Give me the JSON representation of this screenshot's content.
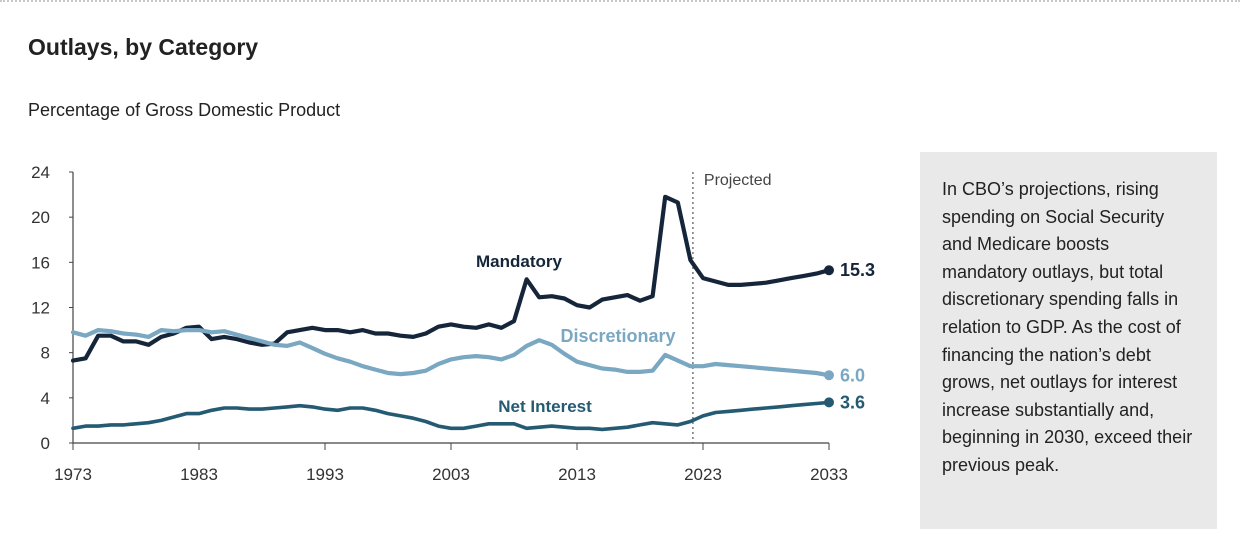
{
  "header": {
    "title": "Outlays, by Category",
    "subtitle": "Percentage of Gross Domestic Product"
  },
  "note": {
    "text": "In CBO’s projections, rising spending on Social Security and Medicare boosts mandatory outlays, but total discretionary spending falls in relation to GDP. As the cost of financing the nation’s debt grows, net outlays for interest increase substantially and, beginning in 2030, exceed their previous peak."
  },
  "colors": {
    "mandatory": "#16263a",
    "discretionary": "#7aa7c2",
    "net_interest": "#245b73",
    "axis": "#444444",
    "box": "#e9e9e9"
  },
  "chart_data": {
    "type": "line",
    "title": "Outlays, by Category",
    "subtitle": "Percentage of Gross Domestic Product",
    "xlabel": "",
    "ylabel": "",
    "xlim": [
      1973,
      2033
    ],
    "ylim": [
      0,
      24
    ],
    "xticks": [
      1973,
      1983,
      1993,
      2003,
      2013,
      2023,
      2033
    ],
    "yticks": [
      0,
      4,
      8,
      12,
      16,
      20,
      24
    ],
    "grid": false,
    "projection_label": "Projected",
    "projection_start": 2022.2,
    "series": [
      {
        "name": "Mandatory",
        "end_label": "15.3",
        "color": "#16263a",
        "x": [
          1973,
          1974,
          1975,
          1976,
          1977,
          1978,
          1979,
          1980,
          1981,
          1982,
          1983,
          1984,
          1985,
          1986,
          1987,
          1988,
          1989,
          1990,
          1991,
          1992,
          1993,
          1994,
          1995,
          1996,
          1997,
          1998,
          1999,
          2000,
          2001,
          2002,
          2003,
          2004,
          2005,
          2006,
          2007,
          2008,
          2009,
          2010,
          2011,
          2012,
          2013,
          2014,
          2015,
          2016,
          2017,
          2018,
          2019,
          2020,
          2021,
          2022,
          2023,
          2024,
          2025,
          2026,
          2027,
          2028,
          2029,
          2030,
          2031,
          2032,
          2033
        ],
        "values": [
          7.3,
          7.5,
          9.5,
          9.5,
          9.0,
          9.0,
          8.7,
          9.4,
          9.7,
          10.2,
          10.3,
          9.2,
          9.4,
          9.2,
          8.9,
          8.7,
          8.8,
          9.8,
          10.0,
          10.2,
          10.0,
          10.0,
          9.8,
          10.0,
          9.7,
          9.7,
          9.5,
          9.4,
          9.7,
          10.3,
          10.5,
          10.3,
          10.2,
          10.5,
          10.2,
          10.8,
          14.5,
          12.9,
          13.0,
          12.8,
          12.2,
          12.0,
          12.7,
          12.9,
          13.1,
          12.6,
          13.0,
          21.8,
          21.3,
          16.2,
          14.6,
          14.3,
          14.0,
          14.0,
          14.1,
          14.2,
          14.4,
          14.6,
          14.8,
          15.0,
          15.3
        ]
      },
      {
        "name": "Discretionary",
        "end_label": "6.0",
        "color": "#7aa7c2",
        "x": [
          1973,
          1974,
          1975,
          1976,
          1977,
          1978,
          1979,
          1980,
          1981,
          1982,
          1983,
          1984,
          1985,
          1986,
          1987,
          1988,
          1989,
          1990,
          1991,
          1992,
          1993,
          1994,
          1995,
          1996,
          1997,
          1998,
          1999,
          2000,
          2001,
          2002,
          2003,
          2004,
          2005,
          2006,
          2007,
          2008,
          2009,
          2010,
          2011,
          2012,
          2013,
          2014,
          2015,
          2016,
          2017,
          2018,
          2019,
          2020,
          2021,
          2022,
          2023,
          2024,
          2025,
          2026,
          2027,
          2028,
          2029,
          2030,
          2031,
          2032,
          2033
        ],
        "values": [
          9.8,
          9.5,
          10.0,
          9.9,
          9.7,
          9.6,
          9.4,
          10.0,
          9.9,
          10.0,
          10.0,
          9.8,
          9.9,
          9.6,
          9.3,
          9.0,
          8.7,
          8.6,
          8.9,
          8.4,
          7.9,
          7.5,
          7.2,
          6.8,
          6.5,
          6.2,
          6.1,
          6.2,
          6.4,
          7.0,
          7.4,
          7.6,
          7.7,
          7.6,
          7.4,
          7.8,
          8.6,
          9.1,
          8.7,
          7.9,
          7.2,
          6.9,
          6.6,
          6.5,
          6.3,
          6.3,
          6.4,
          7.8,
          7.3,
          6.8,
          6.8,
          7.0,
          6.9,
          6.8,
          6.7,
          6.6,
          6.5,
          6.4,
          6.3,
          6.2,
          6.0
        ]
      },
      {
        "name": "Net Interest",
        "end_label": "3.6",
        "color": "#245b73",
        "x": [
          1973,
          1974,
          1975,
          1976,
          1977,
          1978,
          1979,
          1980,
          1981,
          1982,
          1983,
          1984,
          1985,
          1986,
          1987,
          1988,
          1989,
          1990,
          1991,
          1992,
          1993,
          1994,
          1995,
          1996,
          1997,
          1998,
          1999,
          2000,
          2001,
          2002,
          2003,
          2004,
          2005,
          2006,
          2007,
          2008,
          2009,
          2010,
          2011,
          2012,
          2013,
          2014,
          2015,
          2016,
          2017,
          2018,
          2019,
          2020,
          2021,
          2022,
          2023,
          2024,
          2025,
          2026,
          2027,
          2028,
          2029,
          2030,
          2031,
          2032,
          2033
        ],
        "values": [
          1.3,
          1.5,
          1.5,
          1.6,
          1.6,
          1.7,
          1.8,
          2.0,
          2.3,
          2.6,
          2.6,
          2.9,
          3.1,
          3.1,
          3.0,
          3.0,
          3.1,
          3.2,
          3.3,
          3.2,
          3.0,
          2.9,
          3.1,
          3.1,
          2.9,
          2.6,
          2.4,
          2.2,
          1.9,
          1.5,
          1.3,
          1.3,
          1.5,
          1.7,
          1.7,
          1.7,
          1.3,
          1.4,
          1.5,
          1.4,
          1.3,
          1.3,
          1.2,
          1.3,
          1.4,
          1.6,
          1.8,
          1.7,
          1.6,
          1.9,
          2.4,
          2.7,
          2.8,
          2.9,
          3.0,
          3.1,
          3.2,
          3.3,
          3.4,
          3.5,
          3.6
        ]
      }
    ]
  }
}
